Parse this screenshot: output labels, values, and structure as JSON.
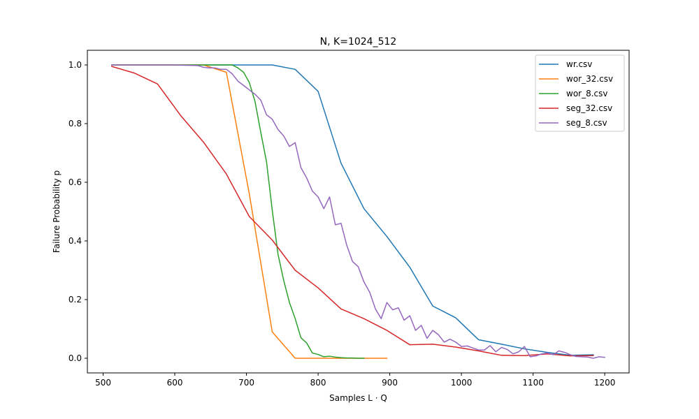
{
  "chart_data": {
    "type": "line",
    "title": "N, K=1024_512",
    "xlabel": "Samples L · Q",
    "ylabel": "Failure Probability p",
    "xlim": [
      478,
      1234
    ],
    "ylim": [
      -0.05,
      1.05
    ],
    "xticks": [
      500,
      600,
      700,
      800,
      900,
      1000,
      1100,
      1200
    ],
    "yticks": [
      0.0,
      0.2,
      0.4,
      0.6,
      0.8,
      1.0
    ],
    "xtick_labels": [
      "500",
      "600",
      "700",
      "800",
      "900",
      "1000",
      "1100",
      "1200"
    ],
    "ytick_labels": [
      "0.0",
      "0.2",
      "0.4",
      "0.6",
      "0.8",
      "1.0"
    ],
    "grid": false,
    "legend_position": "top-right",
    "series": [
      {
        "name": "wr.csv",
        "color": "#1f77b4",
        "x": [
          512,
          672,
          736,
          768,
          800,
          832,
          864,
          896,
          928,
          960,
          992,
          1024,
          1056,
          1088,
          1120,
          1152,
          1184
        ],
        "y": [
          1.0,
          1.0,
          1.0,
          0.985,
          0.91,
          0.665,
          0.51,
          0.415,
          0.31,
          0.178,
          0.138,
          0.063,
          0.048,
          0.032,
          0.02,
          0.01,
          0.012
        ]
      },
      {
        "name": "wor_32.csv",
        "color": "#ff7f0e",
        "x": [
          512,
          640,
          672,
          704,
          736,
          768,
          800,
          832,
          864,
          896
        ],
        "y": [
          1.0,
          1.0,
          0.975,
          0.56,
          0.09,
          0.0,
          0.0,
          0.0,
          0.0,
          0.0
        ]
      },
      {
        "name": "wor_8.csv",
        "color": "#2ca02c",
        "x": [
          512,
          672,
          680,
          688,
          696,
          704,
          712,
          720,
          728,
          736,
          744,
          752,
          760,
          768,
          776,
          784,
          792,
          800,
          808,
          816,
          824,
          832,
          840,
          848,
          856,
          864
        ],
        "y": [
          1.0,
          1.0,
          1.0,
          0.99,
          0.975,
          0.94,
          0.875,
          0.77,
          0.67,
          0.505,
          0.355,
          0.265,
          0.19,
          0.135,
          0.07,
          0.052,
          0.018,
          0.013,
          0.005,
          0.007,
          0.004,
          0.002,
          0.001,
          0.001,
          0.0,
          0.0
        ]
      },
      {
        "name": "seg_32.csv",
        "color": "#d62728",
        "x": [
          512,
          544,
          576,
          608,
          640,
          672,
          704,
          736,
          768,
          800,
          832,
          864,
          896,
          928,
          960,
          992,
          1024,
          1056,
          1088,
          1120,
          1152,
          1184
        ],
        "y": [
          0.995,
          0.972,
          0.935,
          0.828,
          0.737,
          0.628,
          0.483,
          0.403,
          0.3,
          0.24,
          0.168,
          0.135,
          0.095,
          0.046,
          0.048,
          0.038,
          0.025,
          0.01,
          0.009,
          0.015,
          0.008,
          0.009
        ]
      },
      {
        "name": "seg_8.csv",
        "color": "#9467bd",
        "x": [
          512,
          600,
          632,
          640,
          648,
          656,
          664,
          672,
          680,
          688,
          696,
          704,
          712,
          720,
          728,
          736,
          744,
          752,
          760,
          768,
          776,
          784,
          792,
          800,
          808,
          816,
          824,
          832,
          840,
          848,
          856,
          864,
          872,
          880,
          888,
          896,
          904,
          912,
          920,
          928,
          936,
          944,
          952,
          960,
          968,
          976,
          984,
          992,
          1000,
          1008,
          1016,
          1024,
          1032,
          1040,
          1048,
          1056,
          1064,
          1072,
          1080,
          1088,
          1096,
          1104,
          1112,
          1120,
          1128,
          1136,
          1144,
          1152,
          1160,
          1168,
          1176,
          1184,
          1192,
          1200
        ],
        "y": [
          1.0,
          1.0,
          0.998,
          0.992,
          0.99,
          0.99,
          0.985,
          0.985,
          0.97,
          0.945,
          0.93,
          0.915,
          0.9,
          0.88,
          0.83,
          0.815,
          0.78,
          0.758,
          0.722,
          0.735,
          0.65,
          0.615,
          0.57,
          0.55,
          0.51,
          0.55,
          0.455,
          0.46,
          0.385,
          0.33,
          0.312,
          0.26,
          0.225,
          0.168,
          0.135,
          0.19,
          0.165,
          0.172,
          0.13,
          0.145,
          0.095,
          0.112,
          0.068,
          0.095,
          0.08,
          0.055,
          0.065,
          0.055,
          0.04,
          0.042,
          0.035,
          0.028,
          0.028,
          0.043,
          0.022,
          0.037,
          0.03,
          0.015,
          0.022,
          0.04,
          0.005,
          0.008,
          0.015,
          0.018,
          0.012,
          0.025,
          0.02,
          0.012,
          0.006,
          0.005,
          0.004,
          0.0,
          0.005,
          0.003
        ]
      }
    ]
  }
}
